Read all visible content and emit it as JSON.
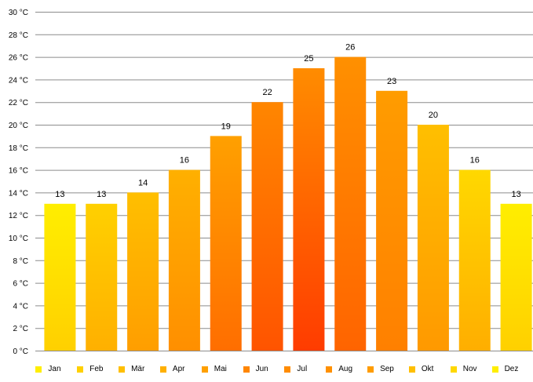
{
  "chart_data": {
    "type": "bar",
    "categories": [
      "Jan",
      "Feb",
      "Mär",
      "Apr",
      "Mai",
      "Jun",
      "Jul",
      "Aug",
      "Sep",
      "Okt",
      "Nov",
      "Dez"
    ],
    "values": [
      13,
      13,
      14,
      16,
      19,
      22,
      25,
      26,
      23,
      20,
      16,
      13
    ],
    "data_labels": [
      "13",
      "13",
      "14",
      "16",
      "19",
      "22",
      "25",
      "26",
      "23",
      "20",
      "16",
      "13"
    ],
    "bar_colors": [
      [
        "#ffee00",
        "#ffd000"
      ],
      [
        "#ffd000",
        "#ffb000"
      ],
      [
        "#ffbf00",
        "#ff9e00"
      ],
      [
        "#ffb000",
        "#ff8f00"
      ],
      [
        "#ffa000",
        "#ff6e00"
      ],
      [
        "#ff8600",
        "#ff5400"
      ],
      [
        "#ff8c00",
        "#ff3c00"
      ],
      [
        "#ff9000",
        "#ff6400"
      ],
      [
        "#ff9c00",
        "#ff8000"
      ],
      [
        "#ffbf00",
        "#ff9900"
      ],
      [
        "#ffd800",
        "#ffae00"
      ],
      [
        "#ffee00",
        "#ffd000"
      ]
    ],
    "yticks": [
      "0 °C",
      "2 °C",
      "4 °C",
      "6 °C",
      "8 °C",
      "10 °C",
      "12 °C",
      "14 °C",
      "16 °C",
      "18 °C",
      "20 °C",
      "22 °C",
      "24 °C",
      "26 °C",
      "28 °C",
      "30 °C"
    ],
    "ylim": [
      0,
      30
    ],
    "ystep": 2,
    "grid": true,
    "legend_placement": "bottom",
    "colors": {
      "gridline": "#8c8c8c"
    },
    "title": "",
    "xlabel": "",
    "ylabel": ""
  }
}
